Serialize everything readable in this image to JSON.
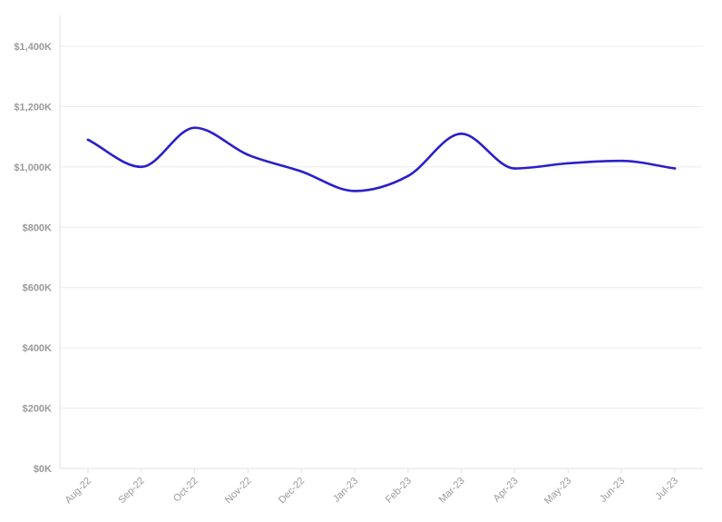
{
  "chart_data": {
    "type": "line",
    "title": "",
    "xlabel": "",
    "ylabel": "",
    "categories": [
      "Aug-22",
      "Sep-22",
      "Oct-22",
      "Nov-22",
      "Dec-22",
      "Jan-23",
      "Feb-23",
      "Mar-23",
      "Apr-23",
      "May-23",
      "Jun-23",
      "Jul-23"
    ],
    "series": [
      {
        "values": [
          1090000,
          1000000,
          1130000,
          1040000,
          985000,
          920000,
          970000,
          1110000,
          995000,
          1012000,
          1020000,
          995000
        ],
        "color": "#2a20c8"
      }
    ],
    "ylim": [
      0,
      1400000
    ],
    "yticks": [
      0,
      200000,
      400000,
      600000,
      800000,
      1000000,
      1200000,
      1400000
    ],
    "ytick_labels": [
      "$0K",
      "$200K",
      "$400K",
      "$600K",
      "$800K",
      "$1,000K",
      "$1,200K",
      "$1,400K"
    ],
    "grid": true,
    "legend": "none"
  }
}
